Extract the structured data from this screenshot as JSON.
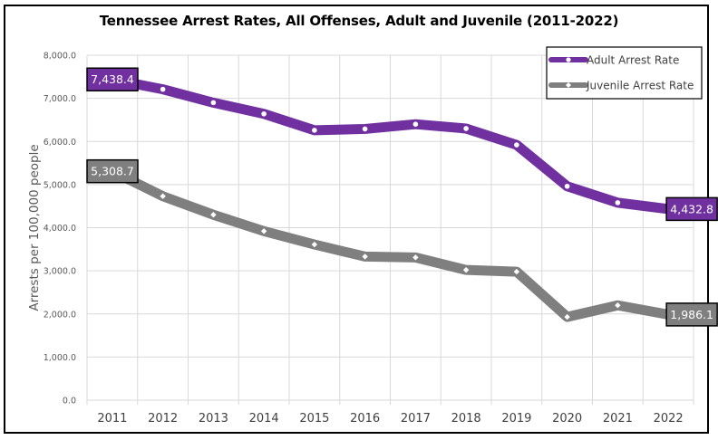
{
  "chart_data": {
    "type": "line",
    "title": "Tennessee Arrest Rates, All Offenses, Adult and Juvenile (2011-2022)",
    "xlabel": "",
    "ylabel": "Arrests per 100,000 people",
    "categories": [
      "2011",
      "2012",
      "2013",
      "2014",
      "2015",
      "2016",
      "2017",
      "2018",
      "2019",
      "2020",
      "2021",
      "2022"
    ],
    "ylim": [
      0,
      8000
    ],
    "yticks": [
      0,
      1000,
      2000,
      3000,
      4000,
      5000,
      6000,
      7000,
      8000
    ],
    "ytick_labels": [
      "0.0",
      "1,000.0",
      "2,000.0",
      "3,000.0",
      "4,000.0",
      "5,000.0",
      "6,000.0",
      "7,000.0",
      "8,000.0"
    ],
    "grid": true,
    "legend_position": "top-right",
    "series": [
      {
        "name": "Adult Arrest Rate",
        "color": "#7030A0",
        "values": [
          7438.4,
          7210,
          6900,
          6640,
          6260,
          6290,
          6400,
          6300,
          5920,
          4960,
          4580,
          4432.8
        ],
        "data_labels": [
          {
            "index": 0,
            "text": "7,438.4"
          },
          {
            "index": 11,
            "text": "4,432.8"
          }
        ]
      },
      {
        "name": "Juvenile Arrest Rate",
        "color": "#7F7F7F",
        "values": [
          5308.7,
          4730,
          4300,
          3920,
          3610,
          3330,
          3310,
          3020,
          2980,
          1930,
          2200,
          1986.1
        ],
        "data_labels": [
          {
            "index": 0,
            "text": "5,308.7"
          },
          {
            "index": 11,
            "text": "1,986.1"
          }
        ]
      }
    ]
  }
}
